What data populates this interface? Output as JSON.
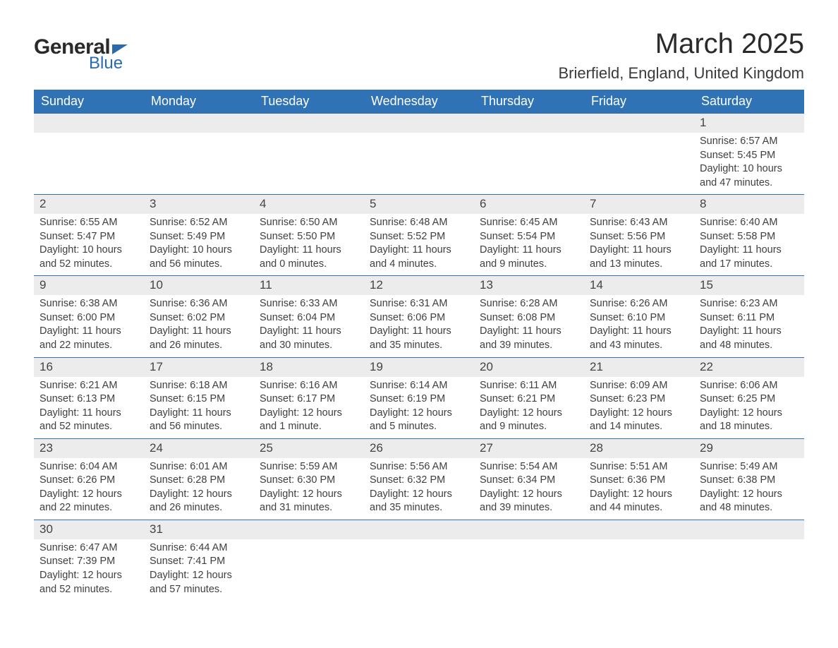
{
  "brand": {
    "main": "General",
    "sub": "Blue",
    "accent": "#2a6bb0"
  },
  "header": {
    "title": "March 2025",
    "location": "Brierfield, England, United Kingdom"
  },
  "colors": {
    "header_bg": "#2f72b6",
    "header_text": "#ffffff",
    "daynum_bg": "#ececec",
    "row_border": "#2f72b6",
    "body_text": "#3a3a3a",
    "page_bg": "#ffffff"
  },
  "typography": {
    "title_fontsize": 40,
    "location_fontsize": 22,
    "dayhead_fontsize": 18,
    "cell_fontsize": 14.5,
    "font_family": "Arial"
  },
  "calendar": {
    "columns": [
      "Sunday",
      "Monday",
      "Tuesday",
      "Wednesday",
      "Thursday",
      "Friday",
      "Saturday"
    ],
    "first_day_column_index": 6,
    "weeks": [
      [
        null,
        null,
        null,
        null,
        null,
        null,
        {
          "n": 1,
          "sunrise": "6:57 AM",
          "sunset": "5:45 PM",
          "daylight": "10 hours and 47 minutes."
        }
      ],
      [
        {
          "n": 2,
          "sunrise": "6:55 AM",
          "sunset": "5:47 PM",
          "daylight": "10 hours and 52 minutes."
        },
        {
          "n": 3,
          "sunrise": "6:52 AM",
          "sunset": "5:49 PM",
          "daylight": "10 hours and 56 minutes."
        },
        {
          "n": 4,
          "sunrise": "6:50 AM",
          "sunset": "5:50 PM",
          "daylight": "11 hours and 0 minutes."
        },
        {
          "n": 5,
          "sunrise": "6:48 AM",
          "sunset": "5:52 PM",
          "daylight": "11 hours and 4 minutes."
        },
        {
          "n": 6,
          "sunrise": "6:45 AM",
          "sunset": "5:54 PM",
          "daylight": "11 hours and 9 minutes."
        },
        {
          "n": 7,
          "sunrise": "6:43 AM",
          "sunset": "5:56 PM",
          "daylight": "11 hours and 13 minutes."
        },
        {
          "n": 8,
          "sunrise": "6:40 AM",
          "sunset": "5:58 PM",
          "daylight": "11 hours and 17 minutes."
        }
      ],
      [
        {
          "n": 9,
          "sunrise": "6:38 AM",
          "sunset": "6:00 PM",
          "daylight": "11 hours and 22 minutes."
        },
        {
          "n": 10,
          "sunrise": "6:36 AM",
          "sunset": "6:02 PM",
          "daylight": "11 hours and 26 minutes."
        },
        {
          "n": 11,
          "sunrise": "6:33 AM",
          "sunset": "6:04 PM",
          "daylight": "11 hours and 30 minutes."
        },
        {
          "n": 12,
          "sunrise": "6:31 AM",
          "sunset": "6:06 PM",
          "daylight": "11 hours and 35 minutes."
        },
        {
          "n": 13,
          "sunrise": "6:28 AM",
          "sunset": "6:08 PM",
          "daylight": "11 hours and 39 minutes."
        },
        {
          "n": 14,
          "sunrise": "6:26 AM",
          "sunset": "6:10 PM",
          "daylight": "11 hours and 43 minutes."
        },
        {
          "n": 15,
          "sunrise": "6:23 AM",
          "sunset": "6:11 PM",
          "daylight": "11 hours and 48 minutes."
        }
      ],
      [
        {
          "n": 16,
          "sunrise": "6:21 AM",
          "sunset": "6:13 PM",
          "daylight": "11 hours and 52 minutes."
        },
        {
          "n": 17,
          "sunrise": "6:18 AM",
          "sunset": "6:15 PM",
          "daylight": "11 hours and 56 minutes."
        },
        {
          "n": 18,
          "sunrise": "6:16 AM",
          "sunset": "6:17 PM",
          "daylight": "12 hours and 1 minute."
        },
        {
          "n": 19,
          "sunrise": "6:14 AM",
          "sunset": "6:19 PM",
          "daylight": "12 hours and 5 minutes."
        },
        {
          "n": 20,
          "sunrise": "6:11 AM",
          "sunset": "6:21 PM",
          "daylight": "12 hours and 9 minutes."
        },
        {
          "n": 21,
          "sunrise": "6:09 AM",
          "sunset": "6:23 PM",
          "daylight": "12 hours and 14 minutes."
        },
        {
          "n": 22,
          "sunrise": "6:06 AM",
          "sunset": "6:25 PM",
          "daylight": "12 hours and 18 minutes."
        }
      ],
      [
        {
          "n": 23,
          "sunrise": "6:04 AM",
          "sunset": "6:26 PM",
          "daylight": "12 hours and 22 minutes."
        },
        {
          "n": 24,
          "sunrise": "6:01 AM",
          "sunset": "6:28 PM",
          "daylight": "12 hours and 26 minutes."
        },
        {
          "n": 25,
          "sunrise": "5:59 AM",
          "sunset": "6:30 PM",
          "daylight": "12 hours and 31 minutes."
        },
        {
          "n": 26,
          "sunrise": "5:56 AM",
          "sunset": "6:32 PM",
          "daylight": "12 hours and 35 minutes."
        },
        {
          "n": 27,
          "sunrise": "5:54 AM",
          "sunset": "6:34 PM",
          "daylight": "12 hours and 39 minutes."
        },
        {
          "n": 28,
          "sunrise": "5:51 AM",
          "sunset": "6:36 PM",
          "daylight": "12 hours and 44 minutes."
        },
        {
          "n": 29,
          "sunrise": "5:49 AM",
          "sunset": "6:38 PM",
          "daylight": "12 hours and 48 minutes."
        }
      ],
      [
        {
          "n": 30,
          "sunrise": "6:47 AM",
          "sunset": "7:39 PM",
          "daylight": "12 hours and 52 minutes."
        },
        {
          "n": 31,
          "sunrise": "6:44 AM",
          "sunset": "7:41 PM",
          "daylight": "12 hours and 57 minutes."
        },
        null,
        null,
        null,
        null,
        null
      ]
    ],
    "labels": {
      "sunrise": "Sunrise:",
      "sunset": "Sunset:",
      "daylight": "Daylight:"
    }
  }
}
